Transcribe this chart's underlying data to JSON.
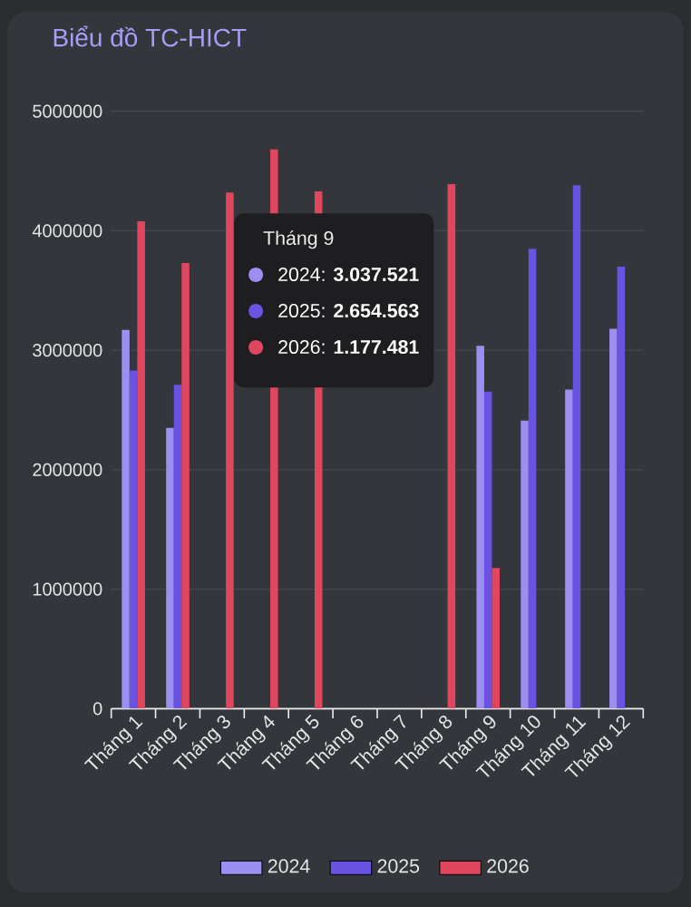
{
  "chart_data": {
    "type": "bar",
    "title": "Biểu đồ TC-HICT",
    "categories": [
      "Tháng 1",
      "Tháng 2",
      "Tháng 3",
      "Tháng 4",
      "Tháng 5",
      "Tháng 6",
      "Tháng 7",
      "Tháng 8",
      "Tháng 9",
      "Tháng 10",
      "Tháng 11",
      "Tháng 12"
    ],
    "series": [
      {
        "name": "2024",
        "color": "#9d8ff2",
        "values": [
          3170000,
          2350000,
          null,
          null,
          null,
          null,
          null,
          null,
          3037521,
          2410000,
          2670000,
          3180000
        ]
      },
      {
        "name": "2025",
        "color": "#6a52e2",
        "values": [
          2830000,
          2710000,
          null,
          null,
          null,
          null,
          null,
          null,
          2654563,
          3850000,
          4380000,
          3700000
        ]
      },
      {
        "name": "2026",
        "color": "#e1465f",
        "values": [
          4080000,
          3730000,
          4320000,
          4680000,
          4330000,
          null,
          null,
          4390000,
          1177481,
          null,
          null,
          null
        ]
      }
    ],
    "ylim": [
      0,
      5000000
    ],
    "yticks": [
      0,
      1000000,
      2000000,
      3000000,
      4000000,
      5000000
    ],
    "grid": "y",
    "legend": "bottom",
    "annotations": [
      "Tháng 9",
      "2024: **3.037.521**",
      "2025: **2.654.563**",
      "2026: **1.177.481**"
    ]
  }
}
